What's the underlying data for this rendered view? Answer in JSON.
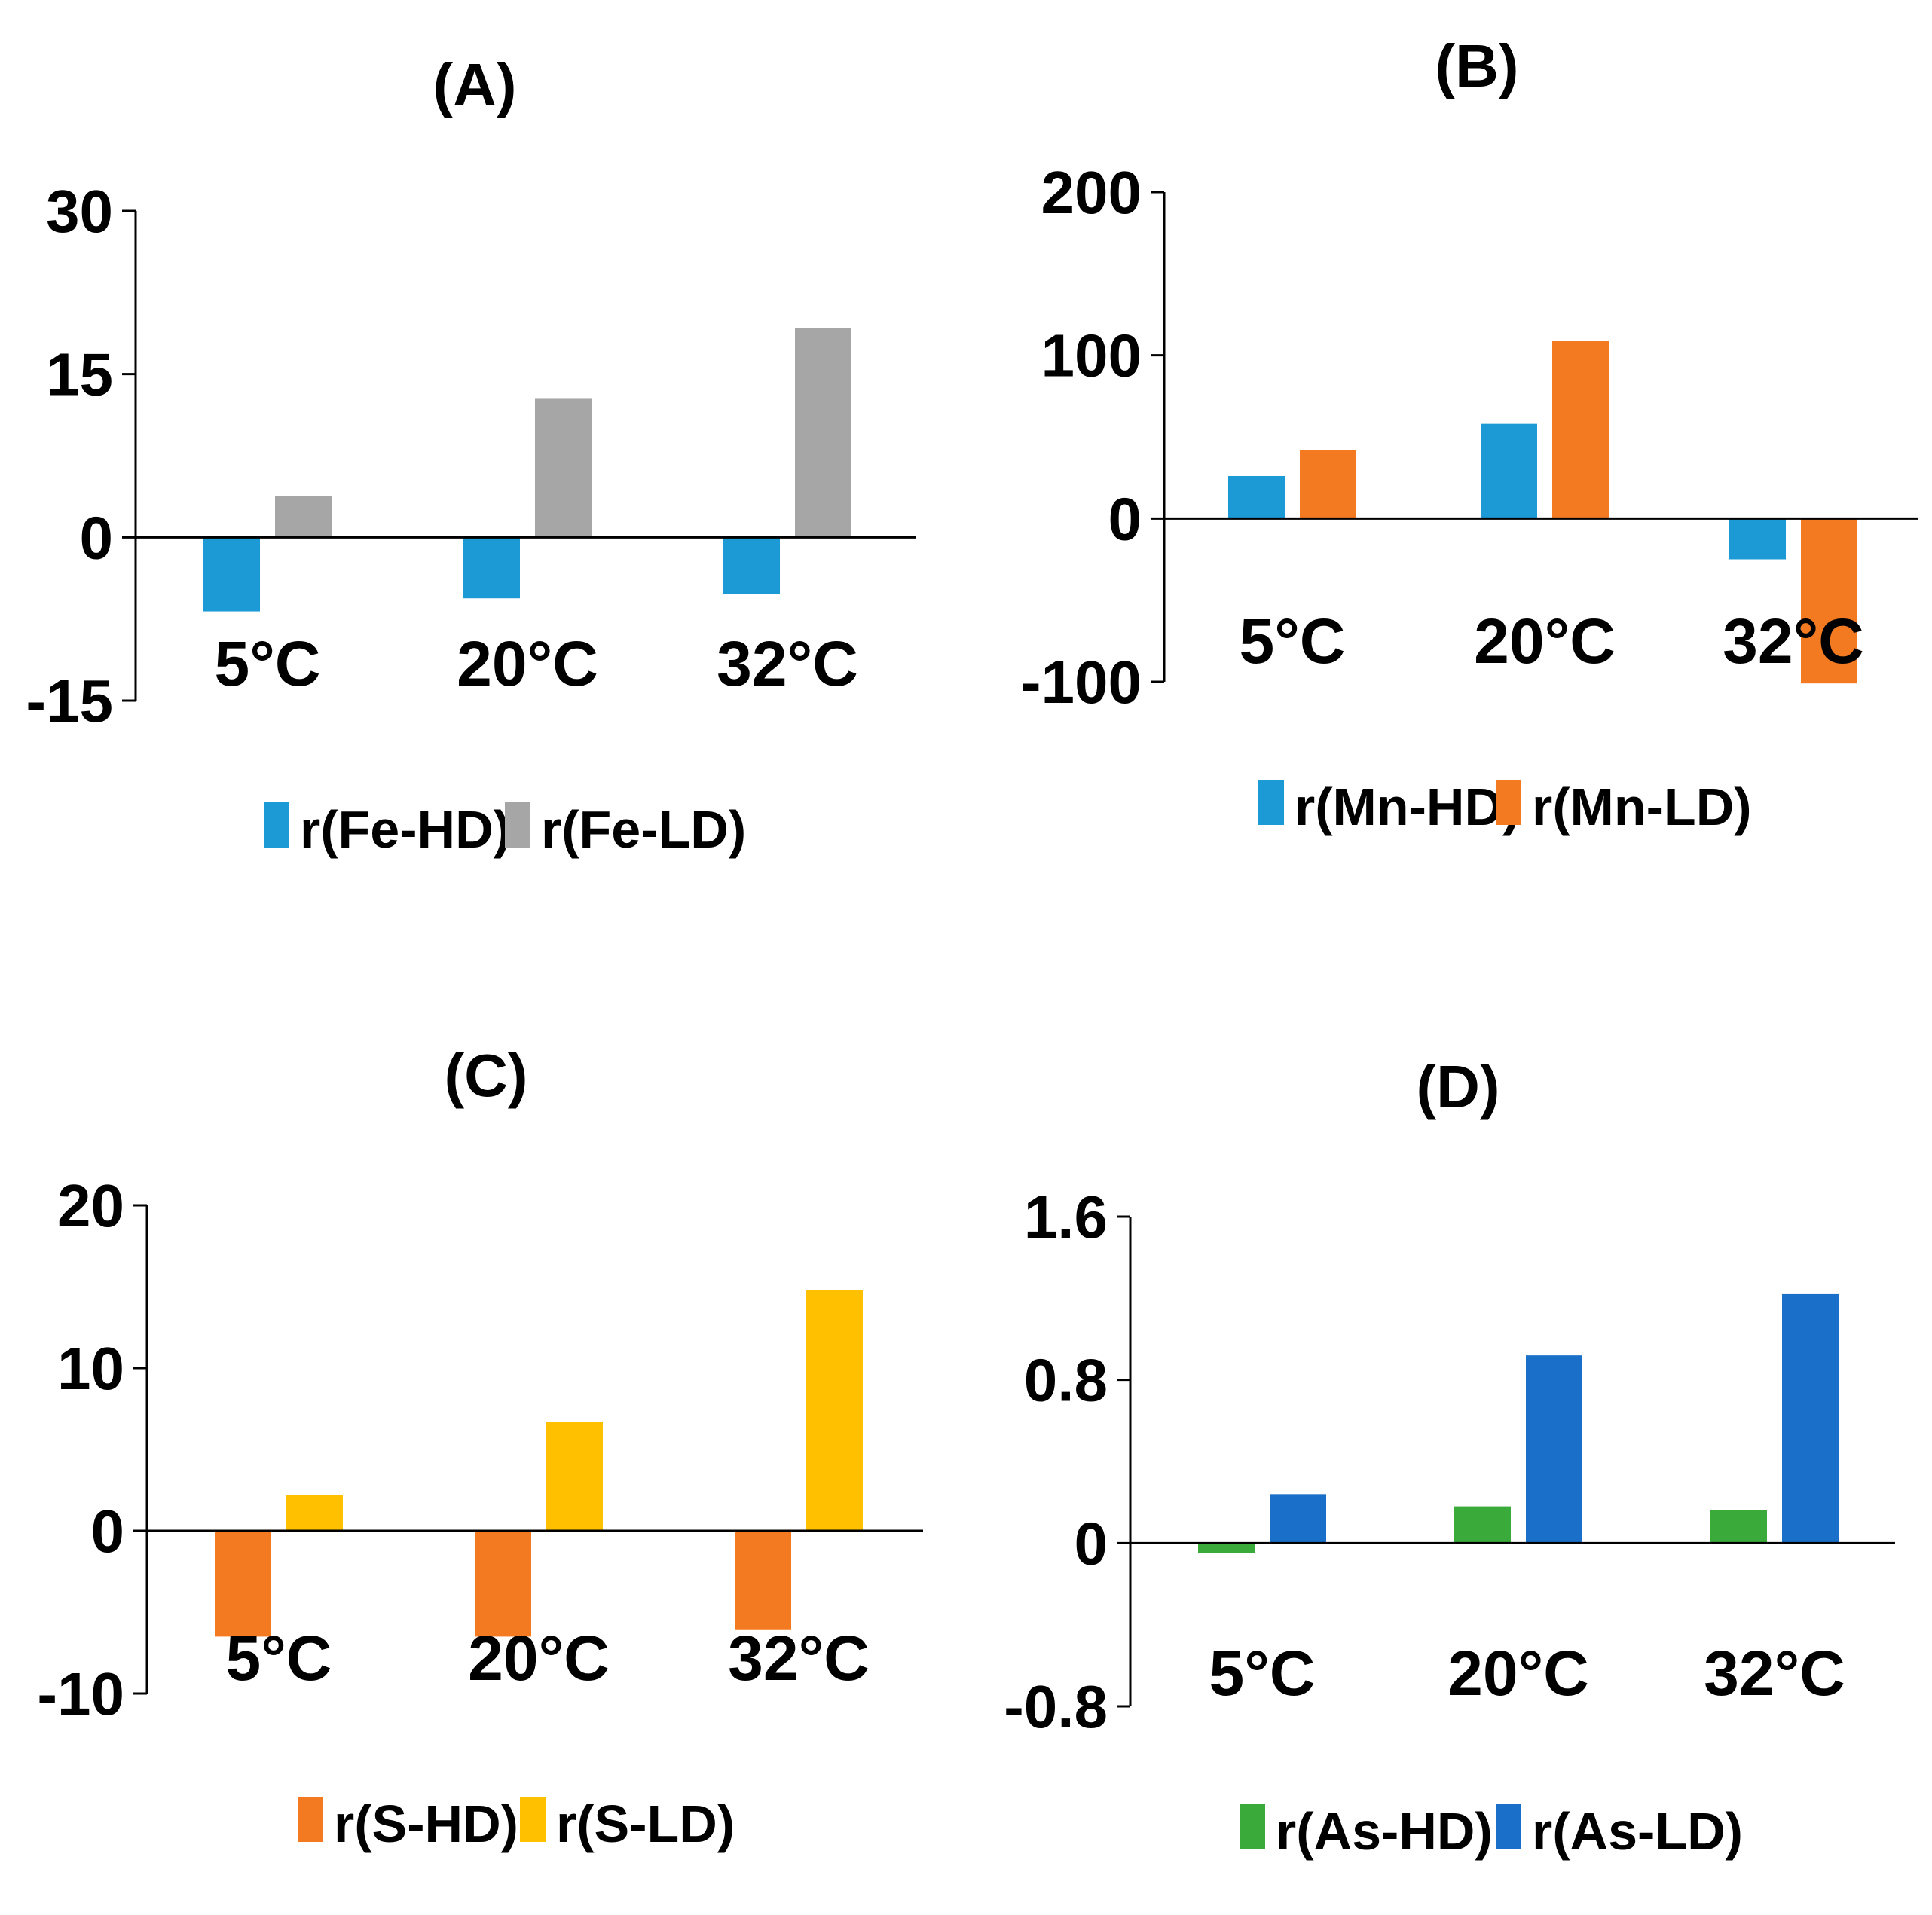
{
  "chart_data": [
    {
      "type": "bar",
      "title": "(A)",
      "categories": [
        "5°C",
        "20°C",
        "32°C"
      ],
      "series": [
        {
          "name": "r(Fe-HD)",
          "values": [
            -6.8,
            -5.6,
            -5.2
          ],
          "color": "#1b9ad6"
        },
        {
          "name": "r(Fe-LD)",
          "values": [
            3.8,
            12.8,
            19.2
          ],
          "color": "#a6a6a6"
        }
      ],
      "yticks": [
        "30",
        "15",
        "0",
        "-15"
      ],
      "ylim": [
        -15,
        30
      ],
      "legend": "bottom",
      "grid": false
    },
    {
      "type": "bar",
      "title": "(B)",
      "categories": [
        "5°C",
        "20°C",
        "32°C"
      ],
      "series": [
        {
          "name": "r(Mn-HD)",
          "values": [
            26,
            58,
            -25
          ],
          "color": "#1b9ad6"
        },
        {
          "name": "r(Mn-LD)",
          "values": [
            42,
            109,
            -101
          ],
          "color": "#f47a22"
        }
      ],
      "yticks": [
        "200",
        "100",
        "0",
        "-100"
      ],
      "ylim": [
        -100,
        200
      ],
      "legend": "bottom",
      "grid": false
    },
    {
      "type": "bar",
      "title": "(C)",
      "categories": [
        "5°C",
        "20°C",
        "32°C"
      ],
      "series": [
        {
          "name": "r(S-HD)",
          "values": [
            -6.5,
            -6.5,
            -6.1
          ],
          "color": "#f47a22"
        },
        {
          "name": "r(S-LD)",
          "values": [
            2.2,
            6.7,
            14.8
          ],
          "color": "#ffc000"
        }
      ],
      "yticks": [
        "20",
        "10",
        "0",
        "-10"
      ],
      "ylim": [
        -10,
        20
      ],
      "legend": "bottom",
      "grid": false
    },
    {
      "type": "bar",
      "title": "(D)",
      "categories": [
        "5°C",
        "20°C",
        "32°C"
      ],
      "series": [
        {
          "name": "r(As-HD)",
          "values": [
            -0.05,
            0.18,
            0.16
          ],
          "color": "#3aaa3a"
        },
        {
          "name": "r(As-LD)",
          "values": [
            0.24,
            0.92,
            1.22
          ],
          "color": "#1a6fc9"
        }
      ],
      "yticks": [
        "1.6",
        "0.8",
        "0",
        "-0.8"
      ],
      "ylim": [
        -0.8,
        1.6
      ],
      "legend": "bottom",
      "grid": false
    }
  ]
}
